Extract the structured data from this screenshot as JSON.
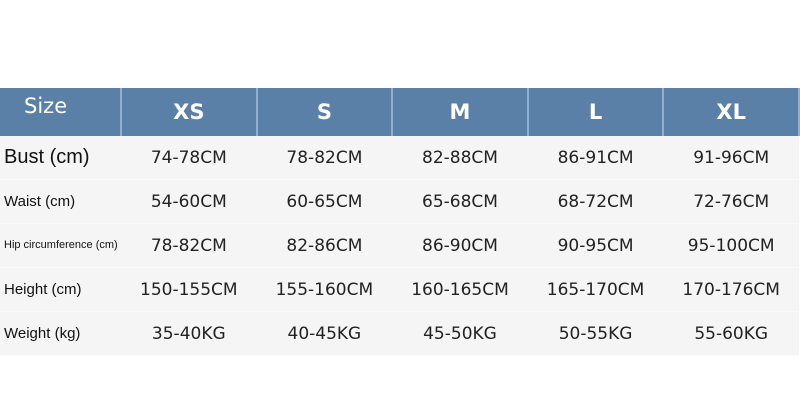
{
  "header": {
    "label": "Size",
    "sizes": [
      "XS",
      "S",
      "M",
      "L",
      "XL"
    ]
  },
  "colors": {
    "header_bg": "#5b80a8",
    "row_bg": "#f4f5f4"
  },
  "rows": [
    {
      "label": "Bust (cm)",
      "values": [
        "74-78CM",
        "78-82CM",
        "82-88CM",
        "86-91CM",
        "91-96CM"
      ]
    },
    {
      "label": "Waist (cm)",
      "values": [
        "54-60CM",
        "60-65CM",
        "65-68CM",
        "68-72CM",
        "72-76CM"
      ]
    },
    {
      "label": "Hip circumference (cm)",
      "values": [
        "78-82CM",
        "82-86CM",
        "86-90CM",
        "90-95CM",
        "95-100CM"
      ]
    },
    {
      "label": "Height (cm)",
      "values": [
        "150-155CM",
        "155-160CM",
        "160-165CM",
        "165-170CM",
        "170-176CM"
      ]
    },
    {
      "label": "Weight (kg)",
      "values": [
        "35-40KG",
        "40-45KG",
        "45-50KG",
        "50-55KG",
        "55-60KG"
      ]
    }
  ]
}
